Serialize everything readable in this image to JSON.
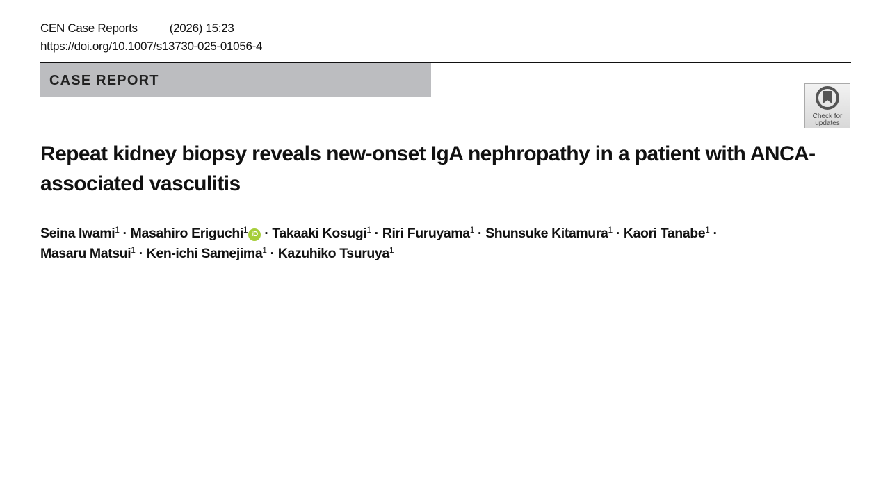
{
  "journal": {
    "name": "CEN Case Reports",
    "volume": "(2026) 15:23",
    "doi": "https://doi.org/10.1007/s13730-025-01056-4"
  },
  "article_type": "CASE REPORT",
  "check_updates": {
    "line1": "Check for",
    "line2": "updates"
  },
  "title": "Repeat kidney biopsy reveals new-onset IgA nephropathy in a patient with ANCA-associated vasculitis",
  "authors": [
    {
      "name": "Seina Iwami",
      "aff": "1"
    },
    {
      "name": "Masahiro Eriguchi",
      "aff": "1",
      "orcid": true
    },
    {
      "name": "Takaaki Kosugi",
      "aff": "1"
    },
    {
      "name": "Riri Furuyama",
      "aff": "1"
    },
    {
      "name": "Shunsuke Kitamura",
      "aff": "1"
    },
    {
      "name": "Kaori Tanabe",
      "aff": "1"
    },
    {
      "name": "Masaru Matsui",
      "aff": "1"
    },
    {
      "name": "Ken-ichi Samejima",
      "aff": "1"
    },
    {
      "name": "Kazuhiko Tsuruya",
      "aff": "1"
    }
  ],
  "colors": {
    "band": "#bcbdc0",
    "orcid": "#a6ce39"
  },
  "icons": {
    "orcid": "orcid-icon",
    "check_updates": "check-for-updates-icon"
  }
}
